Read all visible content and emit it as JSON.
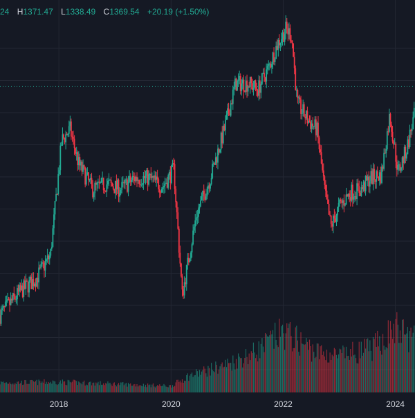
{
  "legend": {
    "open_value": "24",
    "high_label": "H",
    "high_value": "1371.47",
    "low_label": "L",
    "low_value": "1338.49",
    "close_label": "C",
    "close_value": "1369.54",
    "change_value": "+20.19",
    "change_percent": "(+1.50%)"
  },
  "colors": {
    "background": "#151924",
    "grid": "#232733",
    "up": "#22ab94",
    "down": "#f23645",
    "axis_text": "#d1d4dc",
    "price_line": "#22ab94"
  },
  "chart_data": {
    "type": "candlestick",
    "x_tick_labels": [
      "2018",
      "2020",
      "2022",
      "2024"
    ],
    "x_tick_years": [
      2018,
      2020,
      2022,
      2024
    ],
    "x_range": [
      2016.95,
      2024.35
    ],
    "y_range": [
      300,
      1600
    ],
    "current_price": 1369.54,
    "close_series_anchors": {
      "years": [
        2016.95,
        2017.3,
        2017.6,
        2017.85,
        2018.05,
        2018.2,
        2018.35,
        2018.6,
        2018.85,
        2019.1,
        2019.35,
        2019.6,
        2019.85,
        2020.05,
        2020.2,
        2020.45,
        2020.7,
        2020.95,
        2021.15,
        2021.4,
        2021.55,
        2021.75,
        2021.9,
        2022.05,
        2022.15,
        2022.25,
        2022.45,
        2022.6,
        2022.75,
        2022.85,
        2023.0,
        2023.2,
        2023.4,
        2023.55,
        2023.75,
        2023.9,
        2024.05,
        2024.2,
        2024.35
      ],
      "values": [
        570,
        650,
        700,
        780,
        1180,
        1220,
        1100,
        1010,
        1030,
        1010,
        1050,
        1050,
        1020,
        1080,
        640,
        920,
        1050,
        1220,
        1380,
        1380,
        1360,
        1440,
        1520,
        1570,
        1550,
        1310,
        1250,
        1220,
        990,
        880,
        950,
        1000,
        1010,
        1050,
        1060,
        1270,
        1070,
        1150,
        1280
      ]
    },
    "volume_level_anchors": {
      "years": [
        2016.95,
        2018.0,
        2020.0,
        2020.3,
        2021.0,
        2021.5,
        2022.0,
        2022.6,
        2023.0,
        2023.6,
        2024.0,
        2024.35
      ],
      "values": [
        0.12,
        0.13,
        0.08,
        0.2,
        0.35,
        0.5,
        0.75,
        0.5,
        0.45,
        0.55,
        0.8,
        0.65
      ]
    }
  }
}
